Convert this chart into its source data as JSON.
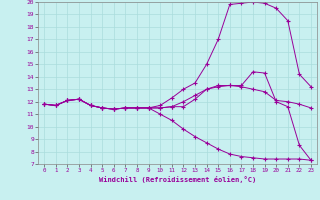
{
  "xlabel": "Windchill (Refroidissement éolien,°C)",
  "line_color": "#990099",
  "background_color": "#c8f0f0",
  "grid_color": "#aadddd",
  "xlim": [
    -0.5,
    23.5
  ],
  "ylim": [
    7,
    20
  ],
  "xticks": [
    0,
    1,
    2,
    3,
    4,
    5,
    6,
    7,
    8,
    9,
    10,
    11,
    12,
    13,
    14,
    15,
    16,
    17,
    18,
    19,
    20,
    21,
    22,
    23
  ],
  "yticks": [
    7,
    8,
    9,
    10,
    11,
    12,
    13,
    14,
    15,
    16,
    17,
    18,
    19,
    20
  ],
  "line1_x": [
    0,
    1,
    2,
    3,
    4,
    5,
    6,
    7,
    8,
    9,
    10,
    11,
    12,
    13,
    14,
    15,
    16,
    17,
    18,
    19,
    20,
    21,
    22,
    23
  ],
  "line1_y": [
    11.8,
    11.7,
    12.1,
    12.2,
    11.7,
    11.5,
    11.4,
    11.5,
    11.5,
    11.5,
    11.5,
    11.6,
    12.0,
    12.5,
    13.0,
    13.3,
    13.3,
    13.2,
    13.0,
    12.8,
    12.1,
    12.0,
    11.8,
    11.5
  ],
  "line2_x": [
    0,
    1,
    2,
    3,
    4,
    5,
    6,
    7,
    8,
    9,
    10,
    11,
    12,
    13,
    14,
    15,
    16,
    17,
    18,
    19,
    20,
    21,
    22,
    23
  ],
  "line2_y": [
    11.8,
    11.7,
    12.1,
    12.2,
    11.7,
    11.5,
    11.4,
    11.5,
    11.5,
    11.5,
    11.7,
    12.3,
    13.0,
    13.5,
    15.0,
    17.0,
    19.8,
    19.9,
    20.0,
    19.9,
    19.5,
    18.5,
    14.2,
    13.2
  ],
  "line3_x": [
    0,
    1,
    2,
    3,
    4,
    5,
    6,
    7,
    8,
    9,
    10,
    11,
    12,
    13,
    14,
    15,
    16,
    17,
    18,
    19,
    20,
    21,
    22,
    23
  ],
  "line3_y": [
    11.8,
    11.7,
    12.1,
    12.2,
    11.7,
    11.5,
    11.4,
    11.5,
    11.5,
    11.5,
    11.5,
    11.6,
    11.6,
    12.2,
    13.0,
    13.2,
    13.3,
    13.3,
    14.4,
    14.3,
    12.0,
    11.6,
    8.5,
    7.3
  ],
  "line4_x": [
    0,
    1,
    2,
    3,
    4,
    5,
    6,
    7,
    8,
    9,
    10,
    11,
    12,
    13,
    14,
    15,
    16,
    17,
    18,
    19,
    20,
    21,
    22,
    23
  ],
  "line4_y": [
    11.8,
    11.7,
    12.1,
    12.2,
    11.7,
    11.5,
    11.4,
    11.5,
    11.5,
    11.5,
    11.0,
    10.5,
    9.8,
    9.2,
    8.7,
    8.2,
    7.8,
    7.6,
    7.5,
    7.4,
    7.4,
    7.4,
    7.4,
    7.3
  ]
}
